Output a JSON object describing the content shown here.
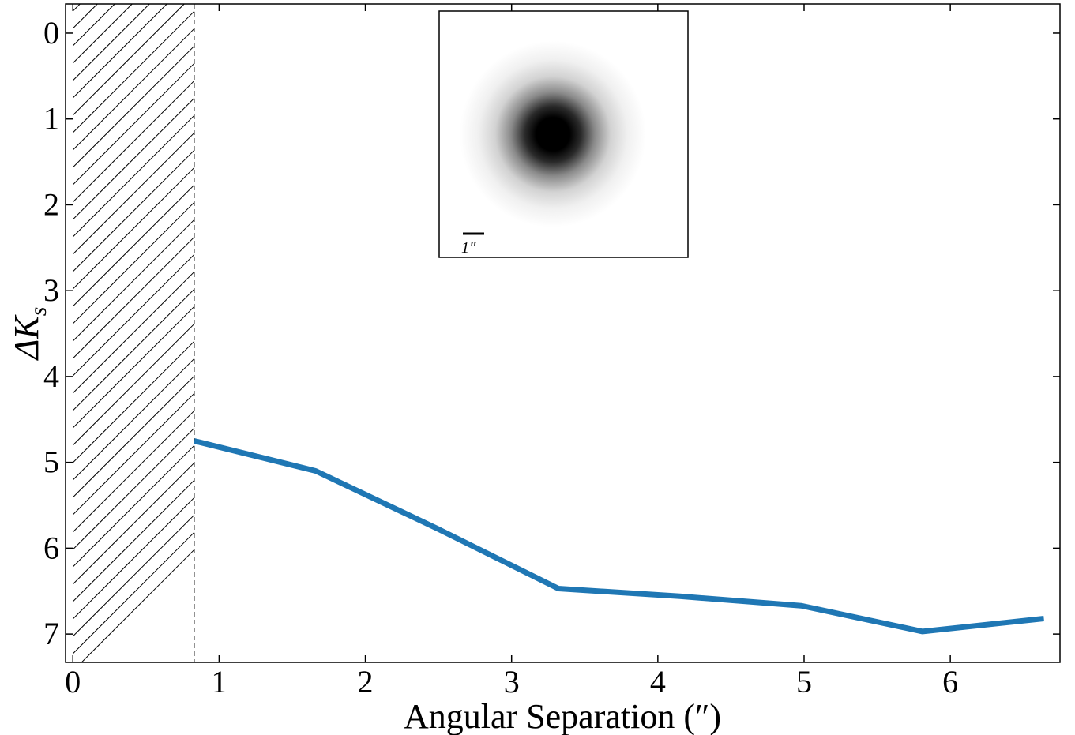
{
  "chart_data": {
    "type": "line",
    "xlabel": "Angular Separation (″)",
    "ylabel_symbol": "ΔK",
    "ylabel_subscript": "s",
    "x_ticks": [
      "0",
      "1",
      "2",
      "3",
      "4",
      "5",
      "6"
    ],
    "y_ticks": [
      "0",
      "1",
      "2",
      "3",
      "4",
      "5",
      "6",
      "7"
    ],
    "xlim": [
      -0.05,
      6.75
    ],
    "ylim": [
      7.33,
      -0.34
    ],
    "y_inverted": true,
    "grid": false,
    "hatched_region": {
      "x_start": 0,
      "x_end": 0.83
    },
    "series": [
      {
        "color": "#1f77b4",
        "x": [
          0.83,
          1.66,
          2.49,
          3.32,
          4.15,
          4.98,
          5.81,
          6.64
        ],
        "y": [
          4.75,
          5.1,
          5.77,
          6.47,
          6.56,
          6.67,
          6.97,
          6.82
        ]
      }
    ],
    "inset": {
      "content": "PSF image",
      "scale_bar_label": "1″"
    }
  }
}
